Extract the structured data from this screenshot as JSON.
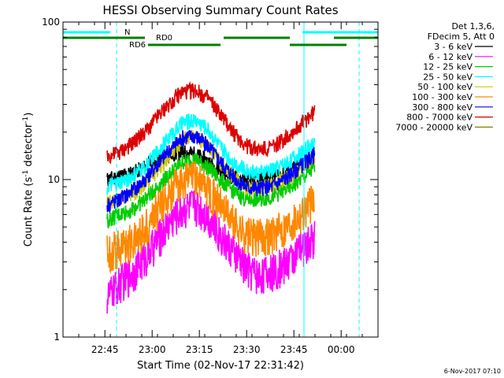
{
  "chart_data": {
    "type": "line",
    "title": "HESSI Observing Summary Count Rates",
    "xlabel": "Start Time (02-Nov-17 22:31:42)",
    "ylabel_main": "Count Rate (s",
    "ylabel_sup1": "-1",
    "ylabel_mid": " detector",
    "ylabel_sup2": "-1",
    "ylabel_end": ")",
    "y_scale": "log",
    "ylim": [
      1,
      100
    ],
    "xlim_minutes": [
      0,
      100
    ],
    "x_ticks": [
      {
        "label": "22:45",
        "minutes": 13.3
      },
      {
        "label": "23:00",
        "minutes": 28.3
      },
      {
        "label": "23:15",
        "minutes": 43.3
      },
      {
        "label": "23:30",
        "minutes": 58.3
      },
      {
        "label": "23:45",
        "minutes": 73.3
      },
      {
        "label": "00:00",
        "minutes": 88.3
      }
    ],
    "y_ticks": [
      {
        "label": "1",
        "value": 1
      },
      {
        "label": "10",
        "value": 10
      },
      {
        "label": "100",
        "value": 100
      }
    ],
    "legend_header": [
      "Det 1,3,6,",
      "FDecim 5, Att 0"
    ],
    "legend_position": "right",
    "series": [
      {
        "name": "3 - 6 keV",
        "color": "#000000",
        "x": [
          14,
          18,
          22,
          26,
          30,
          34,
          38,
          42,
          46,
          50,
          54,
          58,
          62,
          66,
          70,
          74,
          78,
          80
        ],
        "y": [
          10,
          10.5,
          11,
          12,
          13.5,
          14.5,
          15,
          14.5,
          13,
          11.5,
          10.5,
          10,
          10,
          10.5,
          11,
          12,
          13,
          13.5
        ]
      },
      {
        "name": "6 - 12 keV",
        "color": "#ff00ff",
        "x": [
          14,
          18,
          22,
          26,
          30,
          34,
          38,
          42,
          46,
          50,
          54,
          58,
          62,
          66,
          70,
          74,
          78,
          80
        ],
        "y": [
          1.8,
          2.2,
          2.6,
          3.2,
          4.2,
          5.5,
          6.5,
          7,
          6,
          4.5,
          3.5,
          2.8,
          2.5,
          2.6,
          2.9,
          3.4,
          4,
          4.5
        ]
      },
      {
        "name": "12 - 25 keV",
        "color": "#00cc00",
        "x": [
          14,
          18,
          22,
          26,
          30,
          34,
          38,
          42,
          46,
          50,
          54,
          58,
          62,
          66,
          70,
          74,
          78,
          80
        ],
        "y": [
          5.5,
          6,
          6.5,
          7.5,
          9,
          11,
          13,
          13.5,
          12,
          10,
          8.5,
          7.5,
          7.5,
          7.8,
          8.5,
          9.5,
          11,
          12
        ]
      },
      {
        "name": "25 - 50 keV",
        "color": "#00ffff",
        "x": [
          14,
          18,
          22,
          26,
          30,
          34,
          38,
          42,
          46,
          50,
          54,
          58,
          62,
          66,
          70,
          74,
          78,
          80
        ],
        "y": [
          9,
          9.5,
          10.5,
          12,
          15,
          19,
          23,
          24,
          21,
          16,
          13,
          11.5,
          11,
          11.5,
          12.5,
          14,
          16,
          17
        ]
      },
      {
        "name": "50 - 100 keV",
        "color": "#cccc00",
        "x": [
          14,
          18,
          22,
          26,
          30,
          34,
          38,
          42,
          46,
          50,
          54,
          58,
          62,
          66,
          70,
          74,
          78,
          80
        ],
        "y": [
          7,
          7.5,
          8,
          9.5,
          11.5,
          14.5,
          18,
          19,
          16.5,
          13,
          10.5,
          9,
          8.8,
          9.2,
          10,
          11,
          13,
          14
        ]
      },
      {
        "name": "100 - 300 keV",
        "color": "#ff8800",
        "x": [
          14,
          18,
          22,
          26,
          30,
          34,
          38,
          42,
          46,
          50,
          54,
          58,
          62,
          66,
          70,
          74,
          78,
          80
        ],
        "y": [
          3.5,
          3.8,
          4.1,
          5,
          6.5,
          8.5,
          10,
          10.5,
          9,
          7,
          5.5,
          4.5,
          4.4,
          4.6,
          5,
          5.8,
          7,
          7.5
        ]
      },
      {
        "name": "300 - 800 keV",
        "color": "#0000ff",
        "x": [
          14,
          18,
          22,
          26,
          30,
          34,
          38,
          42,
          46,
          50,
          54,
          58,
          62,
          66,
          70,
          74,
          78,
          80
        ],
        "y": [
          7,
          7.5,
          8.5,
          10,
          12.5,
          15.5,
          18.5,
          19,
          16.5,
          13,
          10.5,
          9,
          8.8,
          9,
          10,
          11.5,
          13.5,
          14.5
        ]
      },
      {
        "name": "800 - 7000 keV",
        "color": "#dd0000",
        "x": [
          14,
          18,
          22,
          26,
          30,
          34,
          38,
          42,
          46,
          50,
          54,
          58,
          62,
          66,
          70,
          74,
          78,
          80
        ],
        "y": [
          14,
          15,
          17,
          20,
          25,
          31,
          36,
          37,
          33,
          26,
          20,
          16.5,
          15.5,
          16,
          18,
          21,
          25,
          27
        ]
      },
      {
        "name": "7000 - 20000 keV",
        "color": "#808000",
        "x": [],
        "y": []
      }
    ],
    "state_bars": [
      {
        "label": "N",
        "color": "#00ffff",
        "segments": [
          [
            0,
            15
          ],
          [
            76,
            100
          ]
        ]
      },
      {
        "label": "RD0",
        "color": "#008000",
        "segments": [
          [
            0,
            26
          ],
          [
            51,
            72
          ],
          [
            86,
            100
          ]
        ]
      },
      {
        "label": "RD6",
        "color": "#008000",
        "segments": [
          [
            0,
            0
          ],
          [
            27,
            50
          ],
          [
            72,
            90
          ]
        ]
      }
    ],
    "vertical_markers": [
      {
        "style": "dashed",
        "color": "#00ffff",
        "minutes": 17
      },
      {
        "style": "solid",
        "color": "#00ffff",
        "minutes": 76.5
      },
      {
        "style": "dashed",
        "color": "#00ffff",
        "minutes": 94
      }
    ],
    "footer_date": "6-Nov-2017 07:10"
  }
}
